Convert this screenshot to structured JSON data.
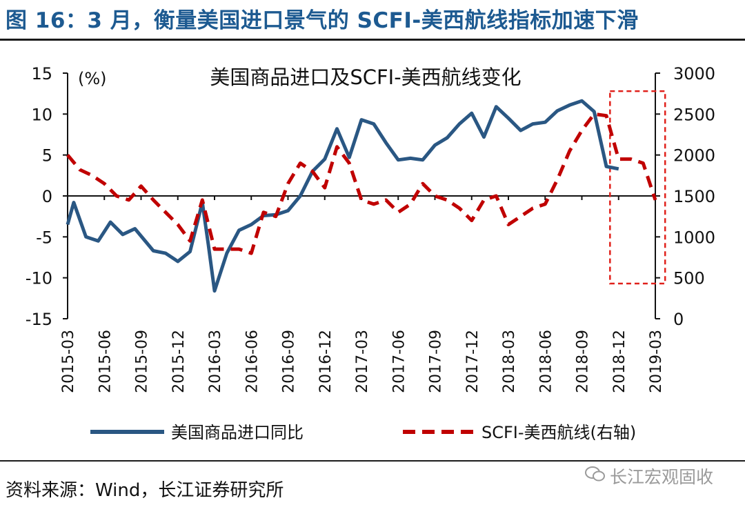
{
  "figure": {
    "title": "图 16：3 月，衡量美国进口景气的 SCFI-美西航线指标加速下滑",
    "source": "资料来源：Wind，长江证券研究所",
    "watermark": "长江宏观固收"
  },
  "colors": {
    "title": "#1d5a91",
    "series1": "#2a5783",
    "series2": "#c00000",
    "highlight": "#e0201a"
  },
  "chart_data": {
    "type": "line",
    "title": "美国商品进口及SCFI-美西航线变化",
    "ylabel_left": "(%)",
    "ylim_left": [
      -15,
      15
    ],
    "yticks_left": [
      "15",
      "10",
      "5",
      "0",
      "-5",
      "-10",
      "-15"
    ],
    "ylim_right": [
      0,
      3000
    ],
    "yticks_right": [
      "3000",
      "2500",
      "2000",
      "1500",
      "1000",
      "500",
      "0"
    ],
    "x_range_months": [
      0,
      48
    ],
    "xticks": [
      "2015-03",
      "2015-06",
      "2015-09",
      "2015-12",
      "2016-03",
      "2016-06",
      "2016-09",
      "2016-12",
      "2017-03",
      "2017-06",
      "2017-09",
      "2017-12",
      "2018-03",
      "2018-06",
      "2018-09",
      "2018-12",
      "2019-03"
    ],
    "series": [
      {
        "name": "美国商品进口同比",
        "axis": "left",
        "style": "solid",
        "x": [
          0,
          0.5,
          1.5,
          2.5,
          3.5,
          4.5,
          5.5,
          7,
          8,
          9,
          10,
          11,
          11.5,
          12,
          13,
          14,
          15,
          16,
          17,
          18,
          19,
          20,
          21,
          22,
          23,
          24,
          25,
          26,
          27,
          28,
          29,
          30,
          31,
          32,
          33,
          34,
          35,
          36,
          37,
          38,
          39,
          40,
          41,
          42,
          43,
          44,
          45
        ],
        "values": [
          -3.5,
          -0.8,
          -5.0,
          -5.5,
          -3.2,
          -4.7,
          -4.0,
          -6.7,
          -7.0,
          -8.0,
          -6.8,
          -0.8,
          -6.0,
          -11.6,
          -7.0,
          -4.2,
          -3.5,
          -2.4,
          -2.3,
          -1.8,
          0.0,
          3.0,
          4.5,
          8.2,
          4.7,
          9.3,
          8.8,
          6.5,
          4.4,
          4.6,
          4.4,
          6.2,
          7.1,
          8.8,
          10.1,
          7.2,
          10.9,
          9.5,
          8.0,
          8.8,
          9.0,
          10.4,
          11.1,
          11.6,
          10.3,
          3.6,
          3.3
        ]
      },
      {
        "name": "SCFI-美西航线(右轴)",
        "axis": "right",
        "style": "dashed",
        "x": [
          0,
          1,
          2,
          3,
          4,
          5,
          6,
          7,
          8,
          9,
          10,
          11,
          12,
          13,
          14,
          15,
          16,
          17,
          18,
          19,
          20,
          21,
          22,
          23,
          24,
          25,
          26,
          27,
          28,
          29,
          30,
          31,
          32,
          33,
          34,
          35,
          36,
          37,
          38,
          39,
          40,
          41,
          42,
          43,
          44,
          45,
          46,
          47,
          48
        ],
        "values": [
          2000,
          1820,
          1750,
          1650,
          1500,
          1450,
          1620,
          1450,
          1300,
          1150,
          950,
          1450,
          850,
          850,
          850,
          800,
          1300,
          1250,
          1650,
          1900,
          1800,
          1600,
          2100,
          1900,
          1450,
          1400,
          1450,
          1300,
          1400,
          1650,
          1500,
          1450,
          1350,
          1200,
          1450,
          1500,
          1150,
          1250,
          1350,
          1400,
          1700,
          2050,
          2300,
          2500,
          2480,
          1950,
          1950,
          1900,
          1450
        ]
      }
    ],
    "highlight": {
      "x_range": [
        44.3,
        48.8
      ],
      "y_range_left": [
        -10.7,
        12.8
      ],
      "style": "dashed red box"
    }
  }
}
